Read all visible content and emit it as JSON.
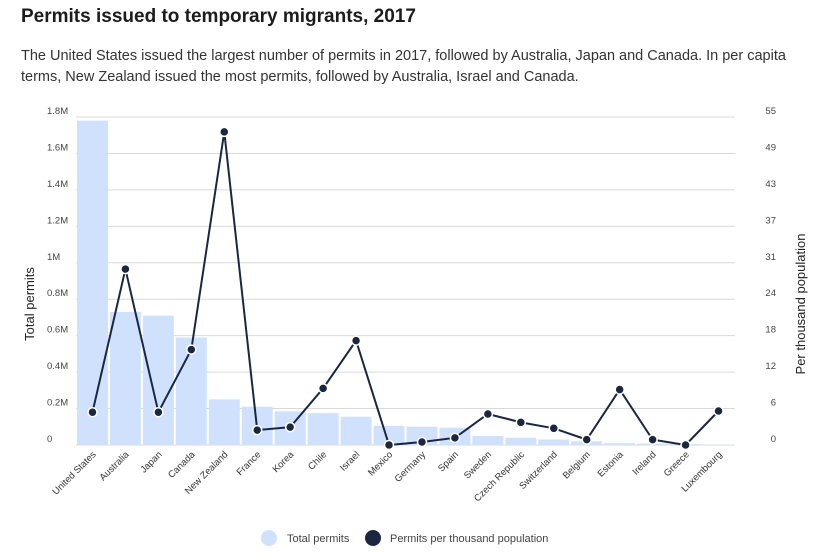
{
  "title": "Permits issued to temporary migrants, 2017",
  "subtitle": "The United States issued the largest number of permits in 2017, followed by Australia, Japan and Canada. In per capita terms, New Zealand issued the most permits, followed by Australia, Israel and Canada.",
  "colors": {
    "bar": "#cfe1fc",
    "line": "#1b2740",
    "grid": "#d9d9d9"
  },
  "chart_data": {
    "type": "bar+line",
    "title": "Permits issued to temporary migrants, 2017",
    "categories": [
      "United States",
      "Australia",
      "Japan",
      "Canada",
      "New Zealand",
      "France",
      "Korea",
      "Chile",
      "Israel",
      "Mexico",
      "Germany",
      "Spain",
      "Sweden",
      "Czech Republic",
      "Switzerland",
      "Belgium",
      "Estonia",
      "Ireland",
      "Greece",
      "Luxembourg"
    ],
    "series": [
      {
        "name": "Total permits",
        "type": "bar",
        "axis": "left",
        "values": [
          1780000,
          730000,
          710000,
          590000,
          250000,
          210000,
          185000,
          175000,
          155000,
          105000,
          100000,
          95000,
          50000,
          40000,
          30000,
          20000,
          10000,
          8000,
          5000,
          3000
        ]
      },
      {
        "name": "Permits per thousand population",
        "type": "line",
        "axis": "right",
        "values": [
          5.5,
          29.5,
          5.5,
          16,
          52.5,
          2.5,
          3,
          9.5,
          17.5,
          0,
          0.5,
          1.2,
          5.2,
          3.8,
          2.8,
          0.9,
          9.3,
          0.9,
          0,
          5.7
        ]
      }
    ],
    "ylabel": "Total permits",
    "ylabel_right": "Per thousand population",
    "ylim": [
      0,
      1800000
    ],
    "ylim_right": [
      0,
      55
    ],
    "yticks_left": [
      "0",
      "0.2M",
      "0.4M",
      "0.6M",
      "0.8M",
      "1M",
      "1.2M",
      "1.4M",
      "1.6M",
      "1.8M"
    ],
    "yticks_right": [
      "0",
      "6",
      "12",
      "18",
      "24",
      "31",
      "37",
      "43",
      "49",
      "55"
    ],
    "legend": [
      "Total permits",
      "Permits per thousand population"
    ],
    "legend_position": "bottom-center"
  }
}
